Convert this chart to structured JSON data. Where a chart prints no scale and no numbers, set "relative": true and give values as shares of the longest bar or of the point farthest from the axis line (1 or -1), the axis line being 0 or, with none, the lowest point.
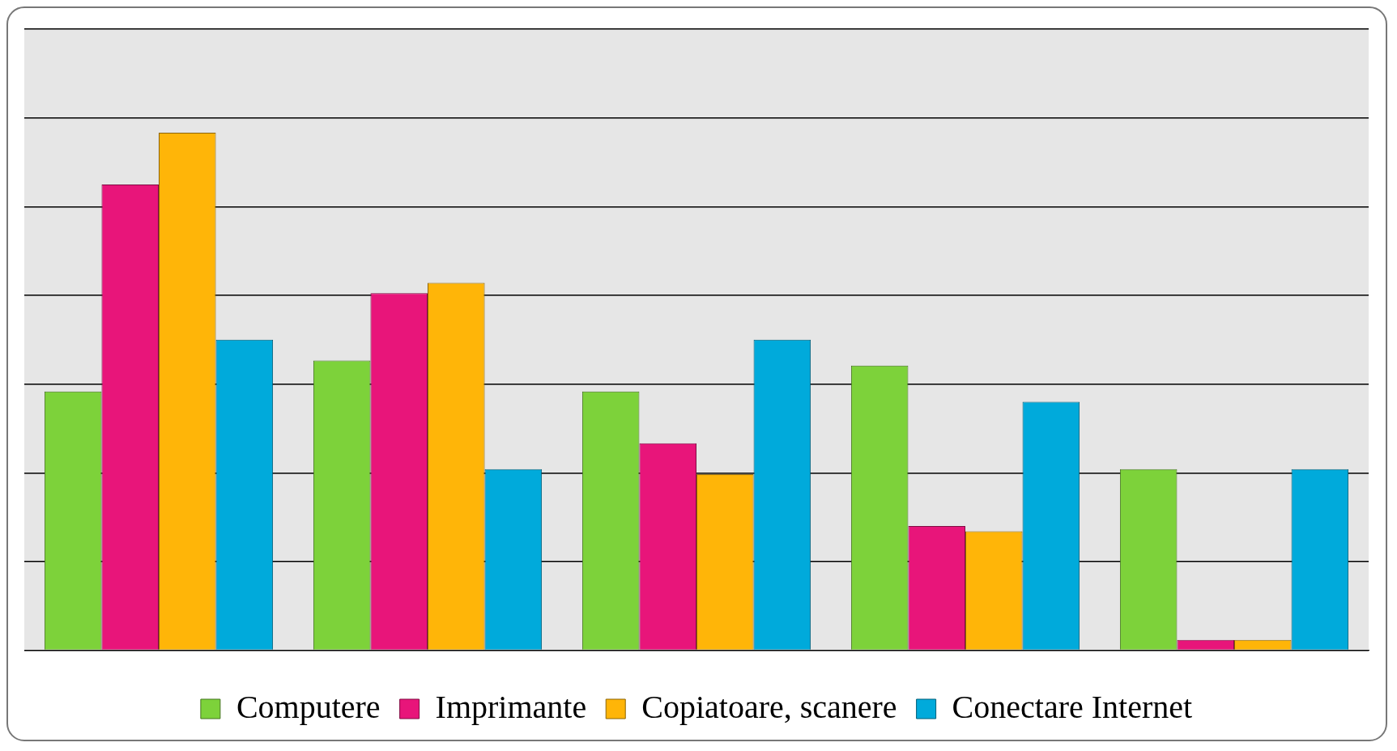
{
  "chart_data": {
    "type": "bar",
    "relative": true,
    "categories": [
      null,
      null,
      null,
      null,
      null
    ],
    "series": [
      {
        "name": "Computere",
        "color": "#7dd23a",
        "values": [
          0.5,
          0.56,
          0.5,
          0.55,
          0.35
        ]
      },
      {
        "name": "Imprimante",
        "color": "#e8157a",
        "values": [
          0.9,
          0.69,
          0.4,
          0.24,
          0.02
        ]
      },
      {
        "name": "Copiatoare, scanere",
        "color": "#ffb508",
        "values": [
          1,
          0.71,
          0.34,
          0.23,
          0.02
        ]
      },
      {
        "name": "Conectare Internet",
        "color": "#00aadb",
        "values": [
          0.6,
          0.35,
          0.6,
          0.48,
          0.35
        ]
      }
    ],
    "grid": "y",
    "legend": "bottom"
  }
}
